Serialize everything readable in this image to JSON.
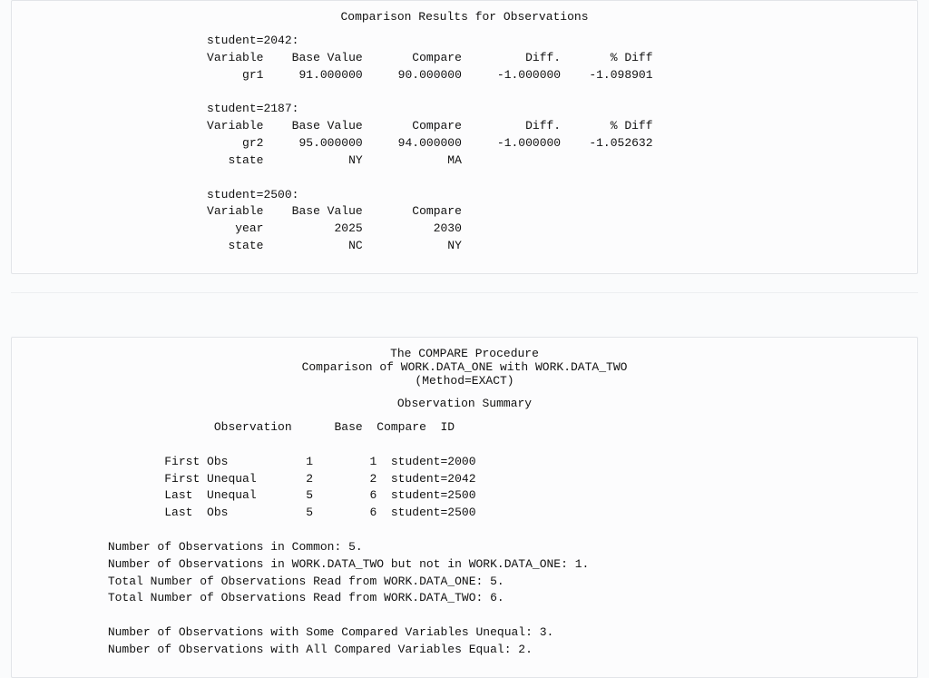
{
  "panel1": {
    "title": "Comparison Results for Observations",
    "block1_header": "student=2042:",
    "block1_cols": "Variable    Base Value       Compare         Diff.       % Diff",
    "block1_row1": "     gr1     91.000000     90.000000     -1.000000    -1.098901",
    "block2_header": "student=2187:",
    "block2_cols": "Variable    Base Value       Compare         Diff.       % Diff",
    "block2_row1": "     gr2     95.000000     94.000000     -1.000000    -1.052632",
    "block2_row2": "   state            NY            MA",
    "block3_header": "student=2500:",
    "block3_cols": "Variable    Base Value       Compare",
    "block3_row1": "    year          2025          2030",
    "block3_row2": "   state            NC            NY"
  },
  "panel2": {
    "title1": "The COMPARE Procedure",
    "title2": "Comparison of WORK.DATA_ONE with WORK.DATA_TWO",
    "title3": "(Method=EXACT)",
    "obs_title": "Observation Summary",
    "obs_cols": "Observation      Base  Compare  ID",
    "obs_row1": "First Obs           1        1  student=2000",
    "obs_row2": "First Unequal       2        2  student=2042",
    "obs_row3": "Last  Unequal       5        6  student=2500",
    "obs_row4": "Last  Obs           5        6  student=2500",
    "sum1": "Number of Observations in Common: 5.",
    "sum2": "Number of Observations in WORK.DATA_TWO but not in WORK.DATA_ONE: 1.",
    "sum3": "Total Number of Observations Read from WORK.DATA_ONE: 5.",
    "sum4": "Total Number of Observations Read from WORK.DATA_TWO: 6.",
    "sum5": "Number of Observations with Some Compared Variables Unequal: 3.",
    "sum6": "Number of Observations with All Compared Variables Equal: 2."
  },
  "indent": {
    "p1_body": "                         ",
    "p2_obs_cols": "                          ",
    "p2_obs_rows": "                   ",
    "p2_summary": "           "
  }
}
